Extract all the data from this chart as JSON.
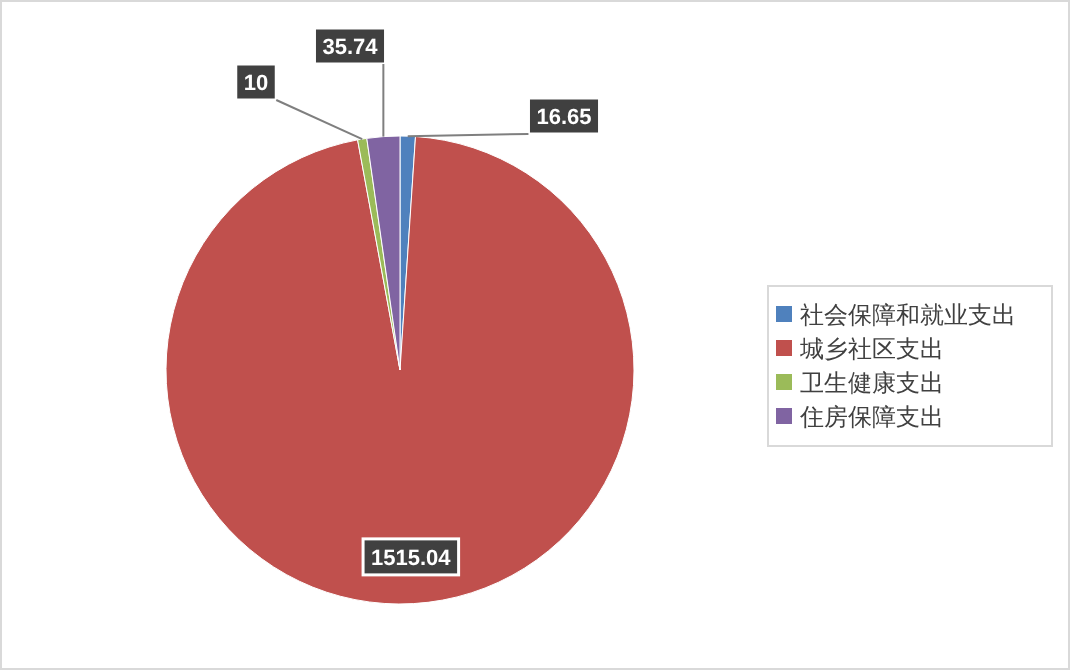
{
  "chart_data": {
    "type": "pie",
    "categories": [
      "社会保障和就业支出",
      "城乡社区支出",
      "卫生健康支出",
      "住房保障支出"
    ],
    "values": [
      16.65,
      1515.04,
      10,
      35.74
    ],
    "colors": [
      "#4f81bd",
      "#c0504d",
      "#9bbb59",
      "#8064a2"
    ],
    "data_labels": true,
    "legend": "right"
  }
}
